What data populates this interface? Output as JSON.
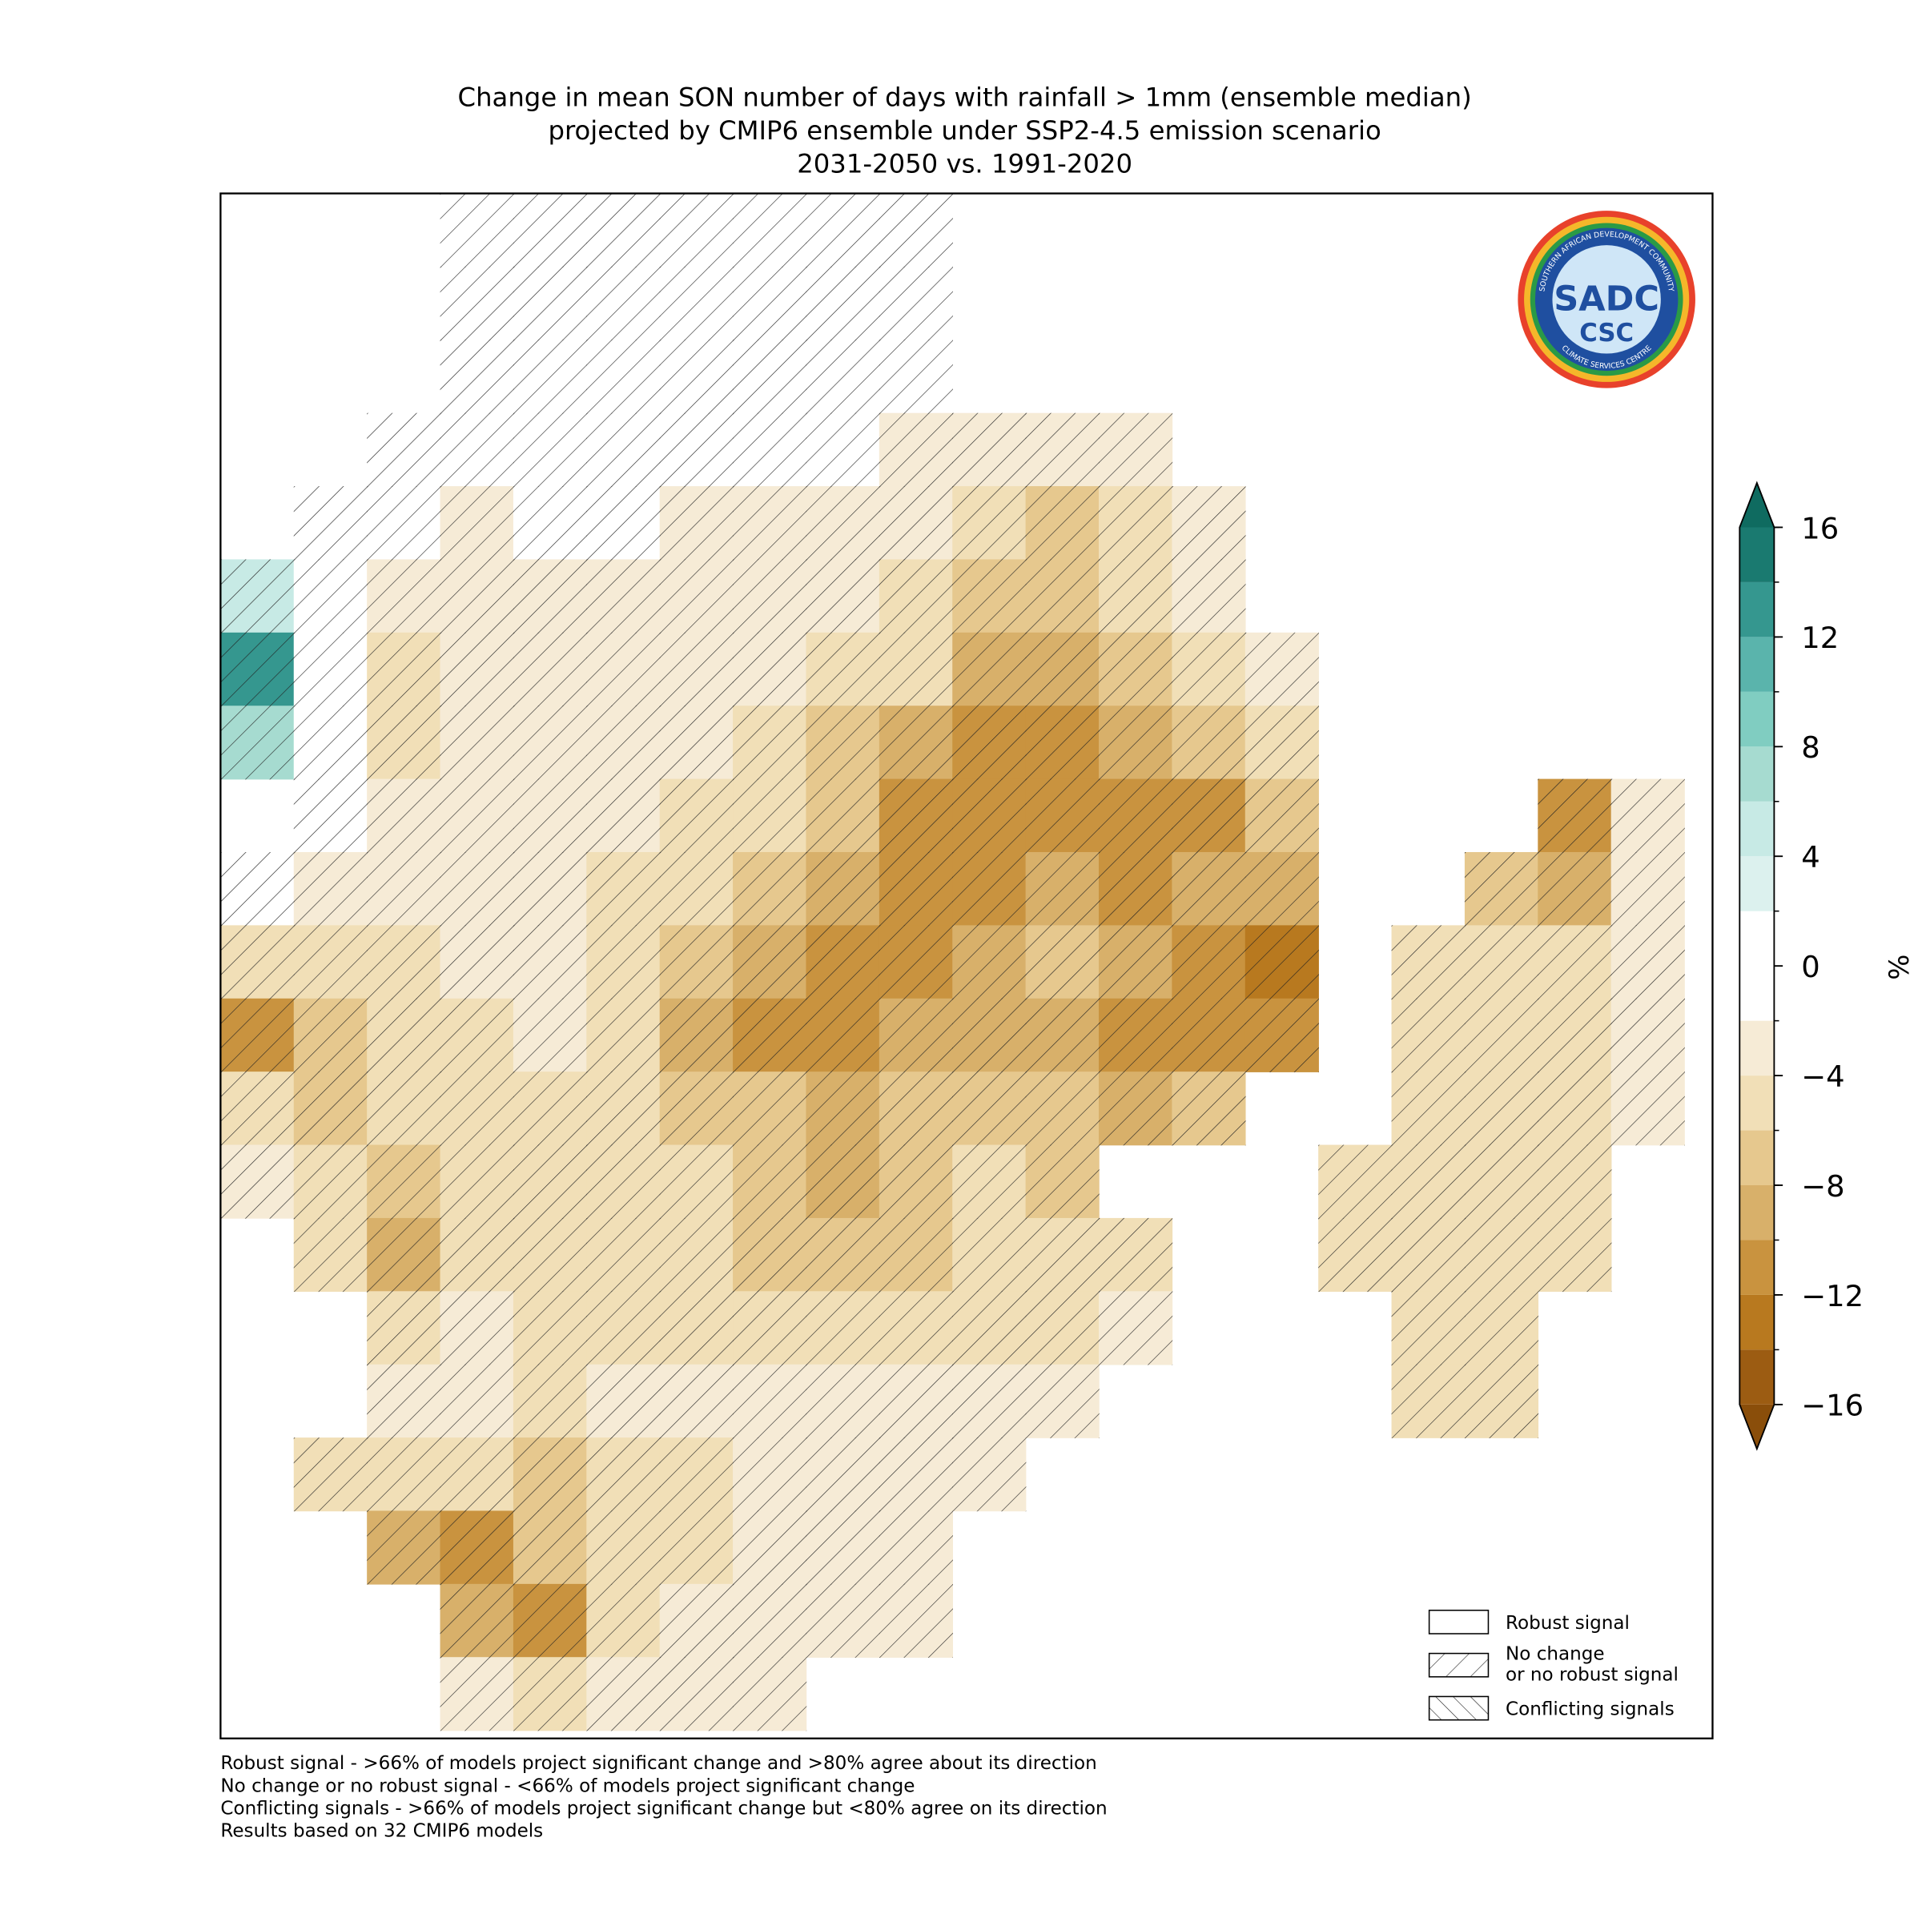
{
  "chart_data": {
    "type": "grid_map",
    "title": [
      "Change in mean SON number of days with rainfall > 1mm (ensemble median)",
      "projected by CMIP6 ensemble under SSP2-4.5 emission scenario",
      "2031-2050 vs. 1991-2020"
    ],
    "logo": {
      "top": "SADC",
      "bottom": "CSC",
      "ring_top": "SOUTHERN AFRICAN DEVELOPMENT COMMUNITY",
      "ring_bottom": "CLIMATE SERVICES CENTRE"
    },
    "grid": {
      "values": [
        [
          null,
          null,
          null,
          0,
          0,
          0,
          0,
          0,
          0,
          0,
          null,
          null,
          null,
          null,
          null,
          null,
          null,
          null,
          null,
          null,
          null
        ],
        [
          null,
          null,
          null,
          0,
          0,
          0,
          0,
          0,
          0,
          0,
          null,
          null,
          null,
          null,
          null,
          null,
          null,
          null,
          null,
          null,
          null
        ],
        [
          null,
          null,
          null,
          0,
          0,
          0,
          0,
          0,
          0,
          0,
          null,
          null,
          null,
          null,
          null,
          null,
          null,
          null,
          null,
          null,
          null
        ],
        [
          null,
          null,
          0,
          0,
          0,
          0,
          0,
          0,
          0,
          -3,
          -3,
          -4,
          -4,
          null,
          null,
          null,
          null,
          null,
          null,
          null,
          null
        ],
        [
          null,
          0,
          0,
          -3,
          0,
          0,
          -3,
          -4,
          -3,
          -4,
          -6,
          -7,
          -5,
          -3,
          null,
          null,
          null,
          null,
          null,
          null,
          null
        ],
        [
          4,
          0,
          -3,
          -3,
          -3,
          -3,
          -4,
          -4,
          -4,
          -6,
          -7,
          -8,
          -6,
          -4,
          null,
          null,
          null,
          null,
          null,
          null,
          null
        ],
        [
          12,
          0,
          -5,
          -3,
          -4,
          -4,
          -4,
          -4,
          -5,
          -6,
          -9,
          -10,
          -8,
          -5,
          -3,
          null,
          null,
          null,
          null,
          null,
          null
        ],
        [
          6,
          -1,
          -5,
          -4,
          -4,
          -4,
          -4,
          -5,
          -7,
          -9,
          -11,
          -12,
          -10,
          -7,
          -5,
          null,
          null,
          null,
          null,
          null,
          null
        ],
        [
          null,
          -1,
          -4,
          -4,
          -4,
          -4,
          -5,
          -6,
          -7,
          -11,
          -12,
          -12,
          -12,
          -11,
          -8,
          null,
          null,
          null,
          -12,
          -3,
          null
        ],
        [
          -1,
          -3,
          -4,
          -4,
          -4,
          -5,
          -6,
          -7,
          -9,
          -12,
          -11,
          -10,
          -11,
          -10,
          -10,
          null,
          null,
          -8,
          -10,
          -3,
          null
        ],
        [
          -6,
          -5,
          -5,
          -4,
          -4,
          -5,
          -7,
          -10,
          -12,
          -11,
          -10,
          -8,
          -10,
          -12,
          -14,
          null,
          -6,
          -6,
          -6,
          -3,
          null
        ],
        [
          -12,
          -7,
          -6,
          -5,
          -4,
          -6,
          -10,
          -11,
          -11,
          -9,
          -9,
          -9,
          -11,
          -11,
          -12,
          null,
          -6,
          -6,
          -6,
          -4,
          null
        ],
        [
          -6,
          -7,
          -6,
          -5,
          -5,
          -6,
          -8,
          -8,
          -9,
          -8,
          -7,
          -8,
          -10,
          -8,
          null,
          null,
          -6,
          -6,
          -6,
          -3,
          null
        ],
        [
          -3,
          -6,
          -8,
          -6,
          -6,
          -6,
          -6,
          -8,
          -9,
          -8,
          -6,
          -7,
          null,
          null,
          null,
          -6,
          -6,
          -6,
          -6,
          null,
          null
        ],
        [
          null,
          -5,
          -9,
          -6,
          -6,
          -6,
          -6,
          -7,
          -8,
          -8,
          -6,
          -5,
          -5,
          null,
          null,
          -5,
          -6,
          -6,
          -5,
          null,
          null
        ],
        [
          null,
          null,
          -5,
          -4,
          -5,
          -5,
          -5,
          -6,
          -6,
          -6,
          -5,
          -5,
          -4,
          null,
          null,
          null,
          -6,
          -6,
          null,
          null,
          null
        ],
        [
          null,
          null,
          -3,
          -3,
          -5,
          -4,
          -4,
          -4,
          -4,
          -4,
          -4,
          -3,
          null,
          null,
          null,
          null,
          -5,
          -5,
          null,
          null,
          null
        ],
        [
          null,
          -6,
          -5,
          -5,
          -7,
          -5,
          -5,
          -3,
          -3,
          -3,
          -4,
          null,
          null,
          null,
          null,
          null,
          null,
          null,
          null,
          null,
          null
        ],
        [
          null,
          null,
          -10,
          -11,
          -7,
          -5,
          -5,
          -3,
          -3,
          -3,
          null,
          null,
          null,
          null,
          null,
          null,
          null,
          null,
          null,
          null,
          null
        ],
        [
          null,
          null,
          null,
          -10,
          -12,
          -5,
          -4,
          -4,
          -3,
          -3,
          null,
          null,
          null,
          null,
          null,
          null,
          null,
          null,
          null,
          null,
          null
        ],
        [
          null,
          null,
          null,
          -4,
          -5,
          -4,
          -3,
          -3,
          null,
          null,
          null,
          null,
          null,
          null,
          null,
          null,
          null,
          null,
          null,
          null,
          null
        ]
      ]
    },
    "colorbar": {
      "label": "%",
      "bounds": [
        -16,
        -14,
        -12,
        -10,
        -8,
        -6,
        -4,
        -2,
        2,
        4,
        6,
        8,
        10,
        12,
        14,
        16
      ],
      "colors": [
        "#9c5c12",
        "#b8791f",
        "#c9933f",
        "#d8b06a",
        "#e6c88e",
        "#f1dfb7",
        "#f6ebd6",
        "#ffffff",
        "#dcf1ee",
        "#c7eae5",
        "#a6dbd0",
        "#80cdc1",
        "#5ab4ac",
        "#35978f",
        "#1a7a70"
      ],
      "under_color": "#8a4e0a",
      "over_color": "#0f6b60",
      "ticks": [
        {
          "value": 16,
          "label": "16"
        },
        {
          "value": 12,
          "label": "12"
        },
        {
          "value": 8,
          "label": "8"
        },
        {
          "value": 4,
          "label": "4"
        },
        0,
        {
          "value": -4,
          "label": "−4"
        },
        {
          "value": -8,
          "label": "−8"
        },
        {
          "value": -12,
          "label": "−12"
        },
        {
          "value": -16,
          "label": "−16"
        }
      ]
    },
    "legend": [
      "Robust signal",
      [
        "No change",
        "or no robust signal"
      ],
      "Conflicting signals"
    ],
    "footnotes": [
      "Robust signal - >66% of models project significant change and >80% agree about its direction",
      "No change or no robust signal - <66% of models project significant change",
      "Conflicting signals - >66% of models project significant change but <80% agree on its direction",
      "Results based on 32 CMIP6 models"
    ]
  }
}
